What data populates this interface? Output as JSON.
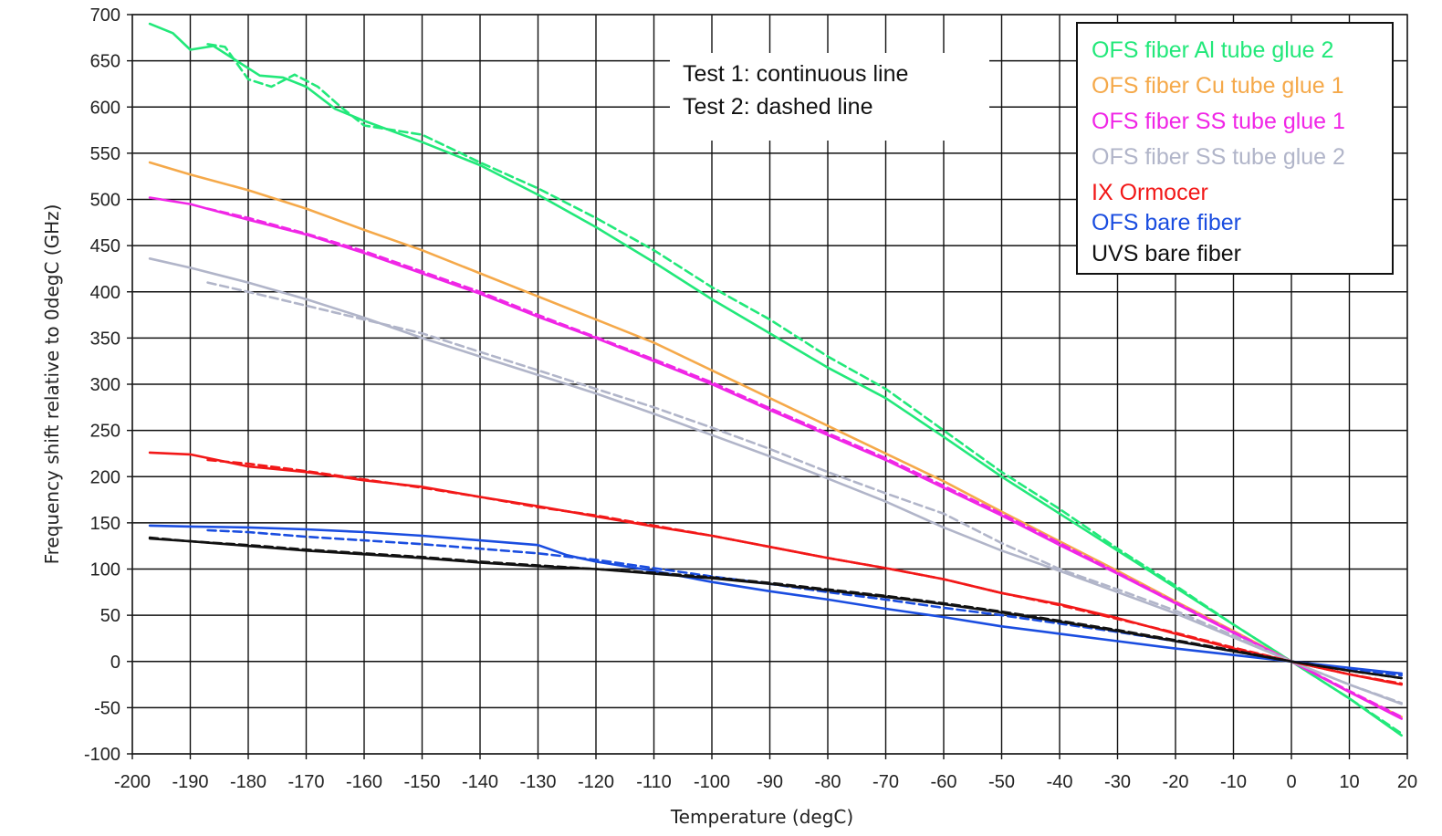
{
  "chart_data": {
    "type": "line",
    "xlabel": "Temperature (degC)",
    "ylabel": "Frequency shift relative to 0degC (GHz)",
    "xlim": [
      -200,
      20
    ],
    "ylim": [
      -100,
      700
    ],
    "xticks": [
      -200,
      -190,
      -180,
      -170,
      -160,
      -150,
      -140,
      -130,
      -120,
      -110,
      -100,
      -90,
      -80,
      -70,
      -60,
      -50,
      -40,
      -30,
      -20,
      -10,
      0,
      10,
      20
    ],
    "yticks": [
      -100,
      -50,
      0,
      50,
      100,
      150,
      200,
      250,
      300,
      350,
      400,
      450,
      500,
      550,
      600,
      650,
      700
    ],
    "grid": true,
    "legend_position": "top-right",
    "annotations": [
      "Test 1: continuous line",
      "Test 2: dashed line"
    ],
    "series": [
      {
        "name": "OFS fiber Al tube glue 2",
        "color": "#22e87a",
        "tests": [
          {
            "test": 1,
            "x": [
              -197,
              -193,
              -190,
              -186,
              -182,
              -178,
              -174,
              -170,
              -165,
              -160,
              -150,
              -140,
              -130,
              -120,
              -110,
              -100,
              -90,
              -80,
              -70,
              -60,
              -50,
              -40,
              -30,
              -20,
              -10,
              0,
              10,
              19
            ],
            "y": [
              690,
              680,
              662,
              666,
              650,
              634,
              632,
              622,
              598,
              585,
              562,
              537,
              505,
              470,
              432,
              392,
              355,
              318,
              285,
              243,
              200,
              160,
              120,
              80,
              40,
              0,
              -40,
              -80
            ]
          },
          {
            "test": 2,
            "x": [
              -187,
              -184,
              -180,
              -176,
              -172,
              -168,
              -164,
              -160,
              -150,
              -140,
              -130,
              -120,
              -110,
              -100,
              -90,
              -80,
              -70,
              -60,
              -50,
              -40,
              -30,
              -20,
              -10,
              0,
              10,
              19
            ],
            "y": [
              668,
              665,
              630,
              622,
              635,
              622,
              600,
              580,
              570,
              540,
              512,
              480,
              445,
              405,
              370,
              330,
              295,
              250,
              205,
              165,
              122,
              82,
              40,
              0,
              -40,
              -78
            ]
          }
        ]
      },
      {
        "name": "OFS fiber Cu tube glue 1",
        "color": "#f5a94a",
        "tests": [
          {
            "test": 1,
            "x": [
              -197,
              -190,
              -180,
              -170,
              -160,
              -150,
              -140,
              -130,
              -120,
              -110,
              -100,
              -90,
              -80,
              -70,
              -60,
              -50,
              -40,
              -30,
              -20,
              -10,
              0,
              10,
              19
            ],
            "y": [
              540,
              527,
              510,
              490,
              467,
              445,
              420,
              395,
              370,
              345,
              315,
              285,
              255,
              225,
              195,
              162,
              130,
              98,
              65,
              33,
              0,
              -33,
              -60
            ]
          }
        ]
      },
      {
        "name": "OFS fiber SS tube glue 1",
        "color": "#f026e6",
        "tests": [
          {
            "test": 1,
            "x": [
              -197,
              -190,
              -180,
              -170,
              -160,
              -150,
              -140,
              -130,
              -120,
              -110,
              -100,
              -90,
              -80,
              -70,
              -60,
              -50,
              -40,
              -30,
              -20,
              -10,
              0,
              10,
              19
            ],
            "y": [
              502,
              495,
              478,
              462,
              442,
              420,
              398,
              373,
              350,
              325,
              300,
              272,
              245,
              218,
              188,
              158,
              126,
              95,
              63,
              31,
              0,
              -33,
              -62
            ]
          },
          {
            "test": 2,
            "x": [
              -187,
              -180,
              -170,
              -160,
              -150,
              -140,
              -130,
              -120,
              -110,
              -100,
              -90,
              -80,
              -70,
              -60,
              -50,
              -40,
              -30,
              -20,
              -10,
              0,
              10,
              19
            ],
            "y": [
              490,
              480,
              463,
              444,
              422,
              400,
              375,
              351,
              327,
              302,
              274,
              247,
              220,
              190,
              160,
              128,
              96,
              64,
              32,
              0,
              -32,
              -60
            ]
          }
        ]
      },
      {
        "name": "OFS fiber SS tube glue 2",
        "color": "#b1b5c9",
        "tests": [
          {
            "test": 1,
            "x": [
              -197,
              -190,
              -180,
              -170,
              -160,
              -150,
              -140,
              -130,
              -120,
              -110,
              -100,
              -90,
              -80,
              -70,
              -60,
              -50,
              -40,
              -30,
              -20,
              -10,
              0,
              10,
              19
            ],
            "y": [
              436,
              426,
              410,
              392,
              372,
              350,
              330,
              310,
              290,
              268,
              245,
              222,
              198,
              173,
              145,
              120,
              98,
              75,
              52,
              26,
              0,
              -25,
              -46
            ]
          },
          {
            "test": 2,
            "x": [
              -187,
              -180,
              -170,
              -160,
              -150,
              -140,
              -130,
              -120,
              -110,
              -100,
              -90,
              -80,
              -70,
              -60,
              -50,
              -40,
              -30,
              -20,
              -10,
              0,
              10,
              19
            ],
            "y": [
              410,
              400,
              385,
              370,
              355,
              335,
              315,
              295,
              275,
              253,
              230,
              205,
              182,
              160,
              128,
              100,
              78,
              55,
              28,
              0,
              -25,
              -45
            ]
          }
        ]
      },
      {
        "name": "IX Ormocer",
        "color": "#f21818",
        "tests": [
          {
            "test": 1,
            "x": [
              -197,
              -190,
              -180,
              -170,
              -160,
              -150,
              -140,
              -130,
              -120,
              -110,
              -100,
              -90,
              -80,
              -70,
              -60,
              -50,
              -40,
              -30,
              -20,
              -10,
              0,
              10,
              19
            ],
            "y": [
              226,
              224,
              211,
              205,
              196,
              189,
              178,
              168,
              157,
              146,
              136,
              124,
              112,
              101,
              89,
              74,
              62,
              47,
              30,
              14,
              0,
              -14,
              -25
            ]
          },
          {
            "test": 2,
            "x": [
              -187,
              -180,
              -170,
              -160,
              -150,
              -140,
              -130,
              -120,
              -110,
              -100,
              -90,
              -80,
              -70,
              -60,
              -50,
              -40,
              -30,
              -20,
              -10,
              0,
              10,
              19
            ],
            "y": [
              218,
              214,
              206,
              197,
              188,
              178,
              167,
              158,
              147,
              136,
              124,
              112,
              101,
              89,
              74,
              61,
              46,
              31,
              15,
              0,
              -14,
              -24
            ]
          }
        ]
      },
      {
        "name": "OFS bare fiber",
        "color": "#1a4de0",
        "tests": [
          {
            "test": 1,
            "x": [
              -197,
              -190,
              -180,
              -170,
              -160,
              -150,
              -140,
              -130,
              -125,
              -120,
              -110,
              -100,
              -90,
              -80,
              -70,
              -60,
              -50,
              -40,
              -30,
              -20,
              -10,
              0,
              10,
              19
            ],
            "y": [
              147,
              146,
              145,
              143,
              140,
              136,
              131,
              126,
              115,
              108,
              98,
              86,
              76,
              67,
              57,
              48,
              38,
              30,
              22,
              14,
              7,
              0,
              -7,
              -13
            ]
          },
          {
            "test": 2,
            "x": [
              -187,
              -180,
              -170,
              -160,
              -150,
              -140,
              -130,
              -120,
              -110,
              -100,
              -90,
              -80,
              -70,
              -60,
              -50,
              -40,
              -30,
              -20,
              -10,
              0,
              10,
              19
            ],
            "y": [
              142,
              140,
              135,
              131,
              127,
              122,
              117,
              110,
              101,
              92,
              84,
              75,
              67,
              58,
              50,
              41,
              32,
              22,
              11,
              0,
              -8,
              -15
            ]
          }
        ]
      },
      {
        "name": "UVS bare fiber",
        "color": "#111111",
        "tests": [
          {
            "test": 1,
            "x": [
              -197,
              -190,
              -180,
              -170,
              -160,
              -150,
              -140,
              -130,
              -120,
              -110,
              -100,
              -90,
              -80,
              -70,
              -60,
              -50,
              -40,
              -30,
              -20,
              -10,
              0,
              10,
              19
            ],
            "y": [
              133,
              130,
              125,
              120,
              116,
              112,
              107,
              103,
              100,
              95,
              90,
              84,
              77,
              70,
              62,
              53,
              43,
              33,
              22,
              11,
              0,
              -10,
              -18
            ]
          },
          {
            "test": 2,
            "x": [
              -197,
              -190,
              -180,
              -170,
              -160,
              -150,
              -140,
              -130,
              -120,
              -110,
              -100,
              -90,
              -80,
              -70,
              -60,
              -50,
              -40,
              -30,
              -20,
              -10,
              0,
              10,
              19
            ],
            "y": [
              134,
              130,
              126,
              121,
              117,
              113,
              108,
              104,
              100,
              96,
              91,
              85,
              78,
              71,
              63,
              54,
              44,
              34,
              23,
              12,
              0,
              -10,
              -18
            ]
          }
        ]
      }
    ]
  }
}
